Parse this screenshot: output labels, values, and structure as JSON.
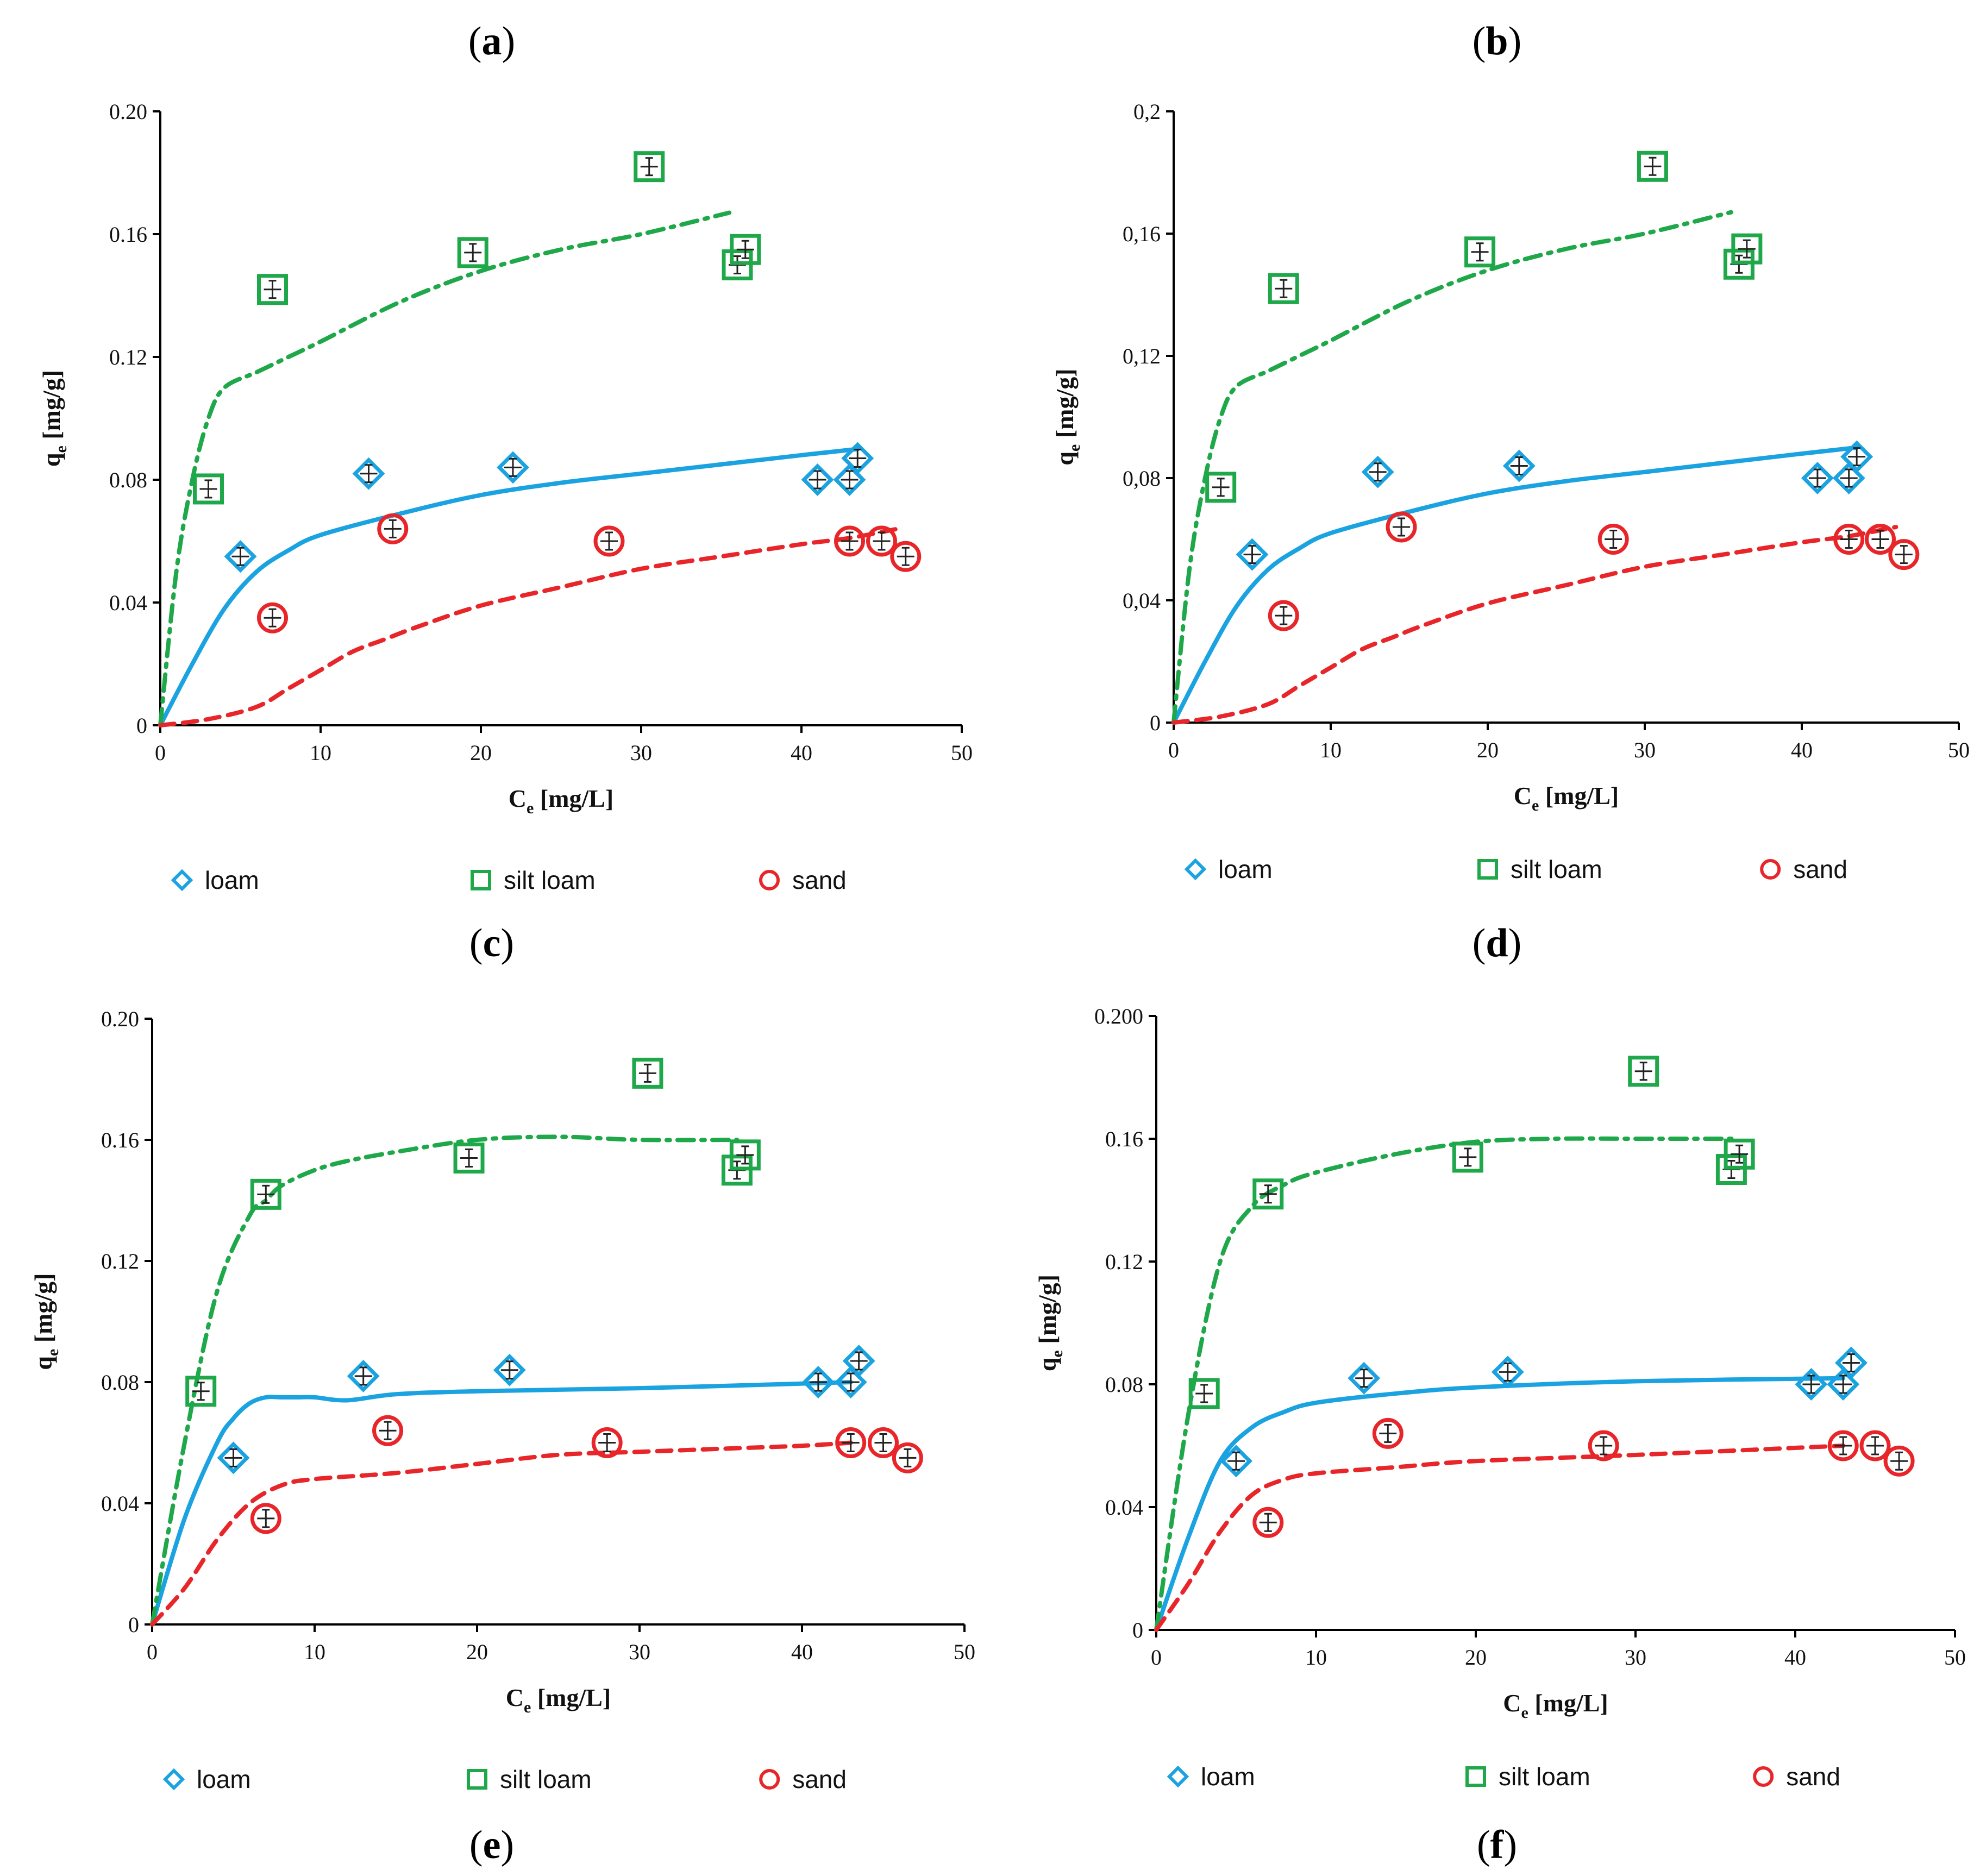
{
  "colors": {
    "loam": "#1aa3e0",
    "silt_loam": "#1fa84a",
    "sand": "#e8262a",
    "axis": "#000000",
    "errorbar": "#222222"
  },
  "legend_icons": {
    "loam": "diamond-icon",
    "silt_loam": "square-icon",
    "sand": "circle-icon"
  },
  "chart_data": [
    {
      "type": "scatter",
      "panel": "a",
      "xlabel_main": "C",
      "xlabel_sub": "e",
      "xlabel_unit": " [mg/L]",
      "ylabel_main": "q",
      "ylabel_sub": "e",
      "ylabel_unit": " [mg/g]",
      "xlim": [
        0,
        50
      ],
      "ylim": [
        0,
        0.2
      ],
      "xticks": [
        "0",
        "10",
        "20",
        "30",
        "40",
        "50"
      ],
      "yticks": [
        "0",
        "0.04",
        "0.08",
        "0.12",
        "0.16",
        "0.20"
      ],
      "legend": [
        "loam",
        "silt loam",
        "sand"
      ],
      "series": [
        {
          "name": "loam",
          "marker": "diamond",
          "line": "solid",
          "x": [
            5,
            13,
            22,
            41,
            43,
            43.5
          ],
          "y": [
            0.055,
            0.082,
            0.084,
            0.08,
            0.08,
            0.087
          ],
          "fit_x": [
            0,
            2,
            4,
            6,
            8,
            10,
            15,
            20,
            25,
            30,
            35,
            40,
            43.5
          ],
          "fit_y": [
            0,
            0.02,
            0.038,
            0.05,
            0.057,
            0.062,
            0.069,
            0.075,
            0.079,
            0.082,
            0.085,
            0.088,
            0.09
          ]
        },
        {
          "name": "silt loam",
          "marker": "square",
          "line": "dashdot",
          "x": [
            3,
            7,
            19.5,
            30.5,
            36,
            36.5
          ],
          "y": [
            0.077,
            0.142,
            0.154,
            0.182,
            0.15,
            0.155
          ],
          "fit_x": [
            0,
            1,
            2,
            3,
            4,
            6,
            8,
            10,
            15,
            20,
            25,
            30,
            35.5
          ],
          "fit_y": [
            0,
            0.05,
            0.08,
            0.1,
            0.11,
            0.115,
            0.12,
            0.125,
            0.138,
            0.148,
            0.155,
            0.16,
            0.167
          ]
        },
        {
          "name": "sand",
          "marker": "circle",
          "line": "dashed",
          "x": [
            7,
            14.5,
            28,
            43,
            45,
            46.5
          ],
          "y": [
            0.035,
            0.064,
            0.06,
            0.06,
            0.06,
            0.055
          ],
          "fit_x": [
            0,
            3,
            6,
            8,
            10,
            12,
            14,
            16,
            20,
            25,
            30,
            35,
            40,
            43,
            46
          ],
          "fit_y": [
            0,
            0.002,
            0.006,
            0.012,
            0.018,
            0.024,
            0.028,
            0.032,
            0.039,
            0.045,
            0.051,
            0.055,
            0.059,
            0.061,
            0.064
          ]
        }
      ]
    },
    {
      "type": "scatter",
      "panel": "b",
      "xlabel_main": "C",
      "xlabel_sub": "e",
      "xlabel_unit": " [mg/L]",
      "ylabel_main": "q",
      "ylabel_sub": "e",
      "ylabel_unit": " [mg/g]",
      "xlim": [
        0,
        50
      ],
      "ylim": [
        0,
        0.2
      ],
      "xticks": [
        "0",
        "10",
        "20",
        "30",
        "40",
        "50"
      ],
      "yticks": [
        "0",
        "0,04",
        "0,08",
        "0,12",
        "0,16",
        "0,2"
      ],
      "legend": [
        "loam",
        "silt loam",
        "sand"
      ],
      "series": [
        {
          "name": "loam",
          "marker": "diamond",
          "line": "solid",
          "x": [
            5,
            13,
            22,
            41,
            43,
            43.5
          ],
          "y": [
            0.055,
            0.082,
            0.084,
            0.08,
            0.08,
            0.087
          ],
          "fit_x": [
            0,
            2,
            4,
            6,
            8,
            10,
            15,
            20,
            25,
            30,
            35,
            40,
            43.5
          ],
          "fit_y": [
            0,
            0.02,
            0.038,
            0.05,
            0.057,
            0.062,
            0.069,
            0.075,
            0.079,
            0.082,
            0.085,
            0.088,
            0.09
          ]
        },
        {
          "name": "silt loam",
          "marker": "square",
          "line": "dashdot",
          "x": [
            3,
            7,
            19.5,
            30.5,
            36,
            36.5
          ],
          "y": [
            0.077,
            0.142,
            0.154,
            0.182,
            0.15,
            0.155
          ],
          "fit_x": [
            0,
            1,
            2,
            3,
            4,
            6,
            8,
            10,
            15,
            20,
            25,
            30,
            35.5
          ],
          "fit_y": [
            0,
            0.05,
            0.08,
            0.1,
            0.11,
            0.115,
            0.12,
            0.125,
            0.138,
            0.148,
            0.155,
            0.16,
            0.167
          ]
        },
        {
          "name": "sand",
          "marker": "circle",
          "line": "dashed",
          "x": [
            7,
            14.5,
            28,
            43,
            45,
            46.5
          ],
          "y": [
            0.035,
            0.064,
            0.06,
            0.06,
            0.06,
            0.055
          ],
          "fit_x": [
            0,
            3,
            6,
            8,
            10,
            12,
            14,
            16,
            20,
            25,
            30,
            35,
            40,
            43,
            46
          ],
          "fit_y": [
            0,
            0.002,
            0.006,
            0.012,
            0.018,
            0.024,
            0.028,
            0.032,
            0.039,
            0.045,
            0.051,
            0.055,
            0.059,
            0.061,
            0.064
          ]
        }
      ]
    },
    {
      "type": "scatter",
      "panel": "e",
      "xlabel_main": "C",
      "xlabel_sub": "e",
      "xlabel_unit": " [mg/L]",
      "ylabel_main": "q",
      "ylabel_sub": "e",
      "ylabel_unit": " [mg/g]",
      "xlim": [
        0,
        50
      ],
      "ylim": [
        0,
        0.2
      ],
      "xticks": [
        "0",
        "10",
        "20",
        "30",
        "40",
        "50"
      ],
      "yticks": [
        "0",
        "0.04",
        "0.08",
        "0.12",
        "0.16",
        "0.20"
      ],
      "legend": [
        "loam",
        "silt loam",
        "sand"
      ],
      "series": [
        {
          "name": "loam",
          "marker": "diamond",
          "line": "solid",
          "x": [
            5,
            13,
            22,
            41,
            43,
            43.5
          ],
          "y": [
            0.055,
            0.082,
            0.084,
            0.08,
            0.08,
            0.087
          ],
          "fit_x": [
            0,
            2,
            4,
            5,
            6,
            7,
            8,
            9,
            10,
            12,
            15,
            20,
            30,
            43
          ],
          "fit_y": [
            0,
            0.035,
            0.06,
            0.068,
            0.073,
            0.075,
            0.075,
            0.075,
            0.075,
            0.074,
            0.076,
            0.077,
            0.078,
            0.08
          ]
        },
        {
          "name": "silt loam",
          "marker": "square",
          "line": "dashdot",
          "x": [
            3,
            7,
            19.5,
            30.5,
            36,
            36.5
          ],
          "y": [
            0.077,
            0.142,
            0.154,
            0.182,
            0.15,
            0.155
          ],
          "fit_x": [
            0,
            2,
            4,
            6,
            7,
            8,
            10,
            12,
            15,
            20,
            25,
            30,
            36
          ],
          "fit_y": [
            0,
            0.06,
            0.11,
            0.135,
            0.14,
            0.145,
            0.15,
            0.153,
            0.156,
            0.16,
            0.161,
            0.16,
            0.16
          ]
        },
        {
          "name": "sand",
          "marker": "circle",
          "line": "dashed",
          "x": [
            7,
            14.5,
            28,
            43,
            45,
            46.5
          ],
          "y": [
            0.035,
            0.064,
            0.06,
            0.06,
            0.06,
            0.055
          ],
          "fit_x": [
            0,
            2,
            4,
            6,
            8,
            10,
            15,
            20,
            25,
            30,
            35,
            40,
            43
          ],
          "fit_y": [
            0,
            0.012,
            0.028,
            0.04,
            0.046,
            0.048,
            0.05,
            0.053,
            0.056,
            0.057,
            0.058,
            0.059,
            0.06
          ]
        }
      ]
    },
    {
      "type": "scatter",
      "panel": "f",
      "xlabel_main": "C",
      "xlabel_sub": "e",
      "xlabel_unit": " [mg/L]",
      "ylabel_main": "q",
      "ylabel_sub": "e",
      "ylabel_unit": " [mg/g]",
      "xlim": [
        0,
        50
      ],
      "ylim": [
        0,
        0.2
      ],
      "xticks": [
        "0",
        "10",
        "20",
        "30",
        "40",
        "50"
      ],
      "yticks": [
        "0",
        "0.04",
        "0.08",
        "0.12",
        "0.16",
        "0.200"
      ],
      "legend": [
        "loam",
        "silt loam",
        "sand"
      ],
      "series": [
        {
          "name": "loam",
          "marker": "diamond",
          "line": "solid",
          "x": [
            5,
            13,
            22,
            41,
            43,
            43.5
          ],
          "y": [
            0.055,
            0.082,
            0.084,
            0.08,
            0.08,
            0.087
          ],
          "fit_x": [
            0,
            2,
            4,
            6,
            8,
            10,
            15,
            20,
            30,
            43
          ],
          "fit_y": [
            0,
            0.03,
            0.055,
            0.066,
            0.071,
            0.074,
            0.077,
            0.079,
            0.081,
            0.082
          ]
        },
        {
          "name": "silt loam",
          "marker": "square",
          "line": "dashdot",
          "x": [
            3,
            7,
            19.5,
            30.5,
            36,
            36.5
          ],
          "y": [
            0.077,
            0.142,
            0.154,
            0.182,
            0.15,
            0.155
          ],
          "fit_x": [
            0,
            2,
            4,
            6,
            8,
            10,
            15,
            20,
            25,
            30,
            36
          ],
          "fit_y": [
            0,
            0.07,
            0.12,
            0.138,
            0.145,
            0.149,
            0.155,
            0.159,
            0.16,
            0.16,
            0.16
          ]
        },
        {
          "name": "sand",
          "marker": "circle",
          "line": "dashed",
          "x": [
            7,
            14.5,
            28,
            43,
            45,
            46.5
          ],
          "y": [
            0.035,
            0.064,
            0.06,
            0.06,
            0.06,
            0.055
          ],
          "fit_x": [
            0,
            2,
            4,
            6,
            8,
            10,
            15,
            20,
            30,
            43
          ],
          "fit_y": [
            0,
            0.015,
            0.032,
            0.044,
            0.049,
            0.051,
            0.053,
            0.055,
            0.057,
            0.06
          ]
        }
      ]
    }
  ],
  "panel_labels": {
    "a": "a",
    "b": "b",
    "c": "c",
    "d": "d",
    "e": "e",
    "f": "f"
  }
}
